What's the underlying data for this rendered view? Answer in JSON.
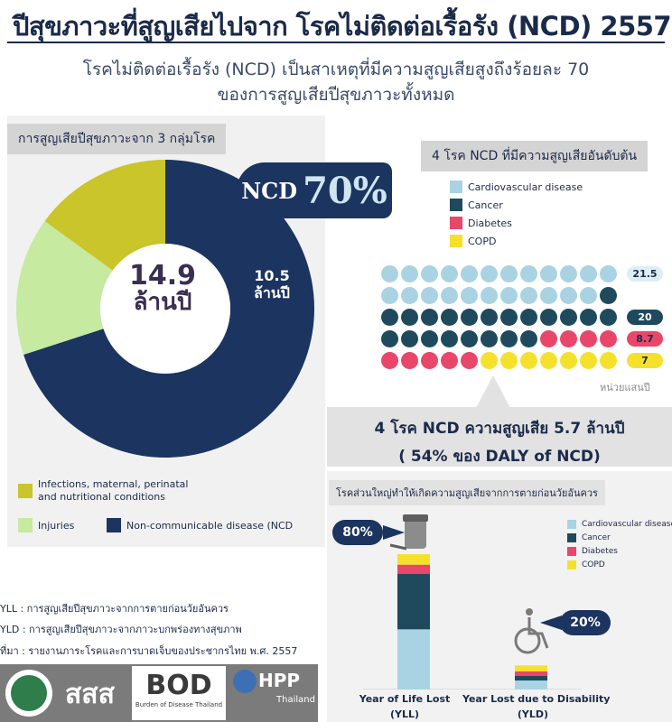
{
  "header": {
    "title": "ปีสุขภาวะที่สูญเสียไปจาก โรคไม่ติดต่อเรื้อรัง (NCD) 2557",
    "subtitle_line1": "โรคไม่ติดต่อเรื้อรัง (NCD) เป็นสาเหตุที่มีความสูญเสียสูงถึงร้อยละ 70",
    "subtitle_line2": "ของการสูญเสียปีสุขภาวะทั้งหมด"
  },
  "left_panel": {
    "tag": "การสูญเสียปีสุขภาวะจาก 3 กลุ่มโรค",
    "center_value": "14.9",
    "center_unit": "ล้านปี",
    "ncd_badge_label": "NCD",
    "ncd_badge_pct": "70%",
    "ncd_value": "10.5",
    "ncd_unit": "ล้านปี",
    "legend": {
      "infections_line1": "Infections, maternal, perinatal",
      "infections_line2": "and nutritional conditions",
      "injuries": "Injuries",
      "ncd": "Non-communicable disease (NCD"
    }
  },
  "right_panel": {
    "tag": "4 โรค NCD ที่มีความสูญเสียอันดับต้น",
    "legend": [
      "Cardiovascular disease",
      "Cancer",
      "Diabetes",
      "COPD"
    ],
    "row_values": [
      "21.5",
      "20",
      "8.7",
      "7"
    ],
    "unit_note": "หน่วยแสนปี"
  },
  "mid_box": {
    "line1": "4 โรค NCD ความสูญเสีย 5.7 ล้านปี",
    "line2": "( 54% ของ DALY of NCD)"
  },
  "bottom_panel": {
    "tag": "โรคส่วนใหญ่ทำให้เกิดความสูญเสียจากการตายก่อนวัยอันควร",
    "yll_pct": "80%",
    "yld_pct": "20%",
    "legend": [
      "Cardiovascular disease",
      "Cancer",
      "Diabetes",
      "COPD"
    ],
    "yll_label1": "Year of Life Lost",
    "yll_label2": "(YLL)",
    "yld_label1": "Year Lost due to Disability",
    "yld_label2": "(YLD)"
  },
  "notes": {
    "yll": "YLL  : การสูญเสียปีสุขภาวะจากการตายก่อนวัยอันควร",
    "yld": "YLD : การสูญเสียปีสุขภาวะจากภาวะบกพร่องทางสุขภาพ",
    "source": "ที่มา : รายงานภาระโรคและการบาดเจ็บของประชากรไทย พ.ศ. 2557"
  },
  "logos": {
    "thaihealth": "สสส",
    "bod": "BOD",
    "bod_sub": "Burden of Disease Thailand",
    "ihpp": "HPP",
    "ihpp_sub": "Thailand"
  },
  "colors": {
    "navy": "#1b3460",
    "lime": "#c9c52a",
    "light_green": "#c5eaa0",
    "cardio": "#a9d3e2",
    "cancer": "#1f4a5e",
    "diabetes": "#e8476a",
    "copd": "#f5e12c"
  },
  "chart_data": [
    {
      "type": "pie",
      "title": "การสูญเสียปีสุขภาวะจาก 3 กลุ่มโรค",
      "total_label": "14.9 ล้านปี",
      "categories": [
        "Non-communicable disease (NCD)",
        "Infections, maternal, perinatal and nutritional conditions",
        "Injuries"
      ],
      "values": [
        70,
        15,
        15
      ],
      "unit": "percent",
      "annotations": [
        "NCD 70%",
        "10.5 ล้านปี"
      ]
    },
    {
      "type": "scatter",
      "title": "4 โรค NCD ที่มีความสูญเสียอันดับต้น",
      "categories": [
        "Cardiovascular disease",
        "Cancer",
        "Diabetes",
        "COPD"
      ],
      "values": [
        21.5,
        20,
        8.7,
        7
      ],
      "unit": "หน่วยแสนปี"
    },
    {
      "type": "bar",
      "title": "โรคส่วนใหญ่ทำให้เกิดความสูญเสียจากการตายก่อนวัยอันควร",
      "categories": [
        "Year of Life Lost (YLL)",
        "Year Lost due to Disability (YLD)"
      ],
      "share_percent": [
        80,
        20
      ],
      "stacked": true,
      "series": [
        {
          "name": "Cardiovascular disease",
          "values": [
            40,
            6
          ]
        },
        {
          "name": "Cancer",
          "values": [
            37,
            3
          ]
        },
        {
          "name": "Diabetes",
          "values": [
            6,
            3
          ]
        },
        {
          "name": "COPD",
          "values": [
            7,
            4
          ]
        }
      ],
      "unit": "relative"
    }
  ]
}
